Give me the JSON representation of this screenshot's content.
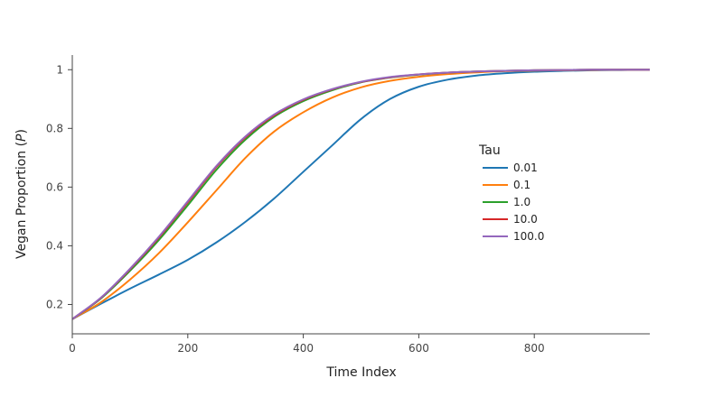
{
  "chart_data": {
    "type": "line",
    "xlabel": "Time Index",
    "ylabel_main": "Vegan Proportion (",
    "ylabel_symbol": "P",
    "ylabel_tail": ")",
    "xlim": [
      0,
      1000
    ],
    "ylim": [
      0.1,
      1.05
    ],
    "x_ticks": [
      0,
      200,
      400,
      600,
      800
    ],
    "x_tick_labels": [
      "0",
      "200",
      "400",
      "600",
      "800"
    ],
    "y_ticks": [
      0.2,
      0.4,
      0.6,
      0.8,
      1.0
    ],
    "y_tick_labels": [
      "0.2",
      "0.4",
      "0.6",
      "0.8",
      "1"
    ],
    "grid": false,
    "legend": {
      "title": "Tau",
      "placement": "right-center"
    },
    "x": [
      0,
      50,
      100,
      150,
      200,
      250,
      300,
      350,
      400,
      450,
      500,
      550,
      600,
      650,
      700,
      750,
      800,
      850,
      900,
      950,
      1000
    ],
    "series": [
      {
        "name": "0.01",
        "color": "#1f77b4",
        "values": [
          0.15,
          0.203,
          0.254,
          0.302,
          0.352,
          0.412,
          0.482,
          0.562,
          0.652,
          0.742,
          0.832,
          0.9,
          0.942,
          0.966,
          0.98,
          0.988,
          0.993,
          0.996,
          0.998,
          0.999,
          1.0
        ]
      },
      {
        "name": "0.1",
        "color": "#ff7f0e",
        "values": [
          0.15,
          0.208,
          0.285,
          0.375,
          0.48,
          0.59,
          0.7,
          0.79,
          0.855,
          0.905,
          0.94,
          0.962,
          0.976,
          0.985,
          0.991,
          0.995,
          0.997,
          0.998,
          0.999,
          1.0,
          1.0
        ]
      },
      {
        "name": "1.0",
        "color": "#2ca02c",
        "values": [
          0.15,
          0.221,
          0.315,
          0.42,
          0.538,
          0.66,
          0.762,
          0.84,
          0.893,
          0.93,
          0.957,
          0.973,
          0.983,
          0.99,
          0.994,
          0.996,
          0.998,
          0.999,
          1.0,
          1.0,
          1.0
        ]
      },
      {
        "name": "10.0",
        "color": "#d62728",
        "values": [
          0.15,
          0.223,
          0.32,
          0.428,
          0.548,
          0.67,
          0.77,
          0.845,
          0.897,
          0.933,
          0.958,
          0.974,
          0.984,
          0.99,
          0.994,
          0.996,
          0.998,
          0.999,
          1.0,
          1.0,
          1.0
        ]
      },
      {
        "name": "100.0",
        "color": "#9467bd",
        "values": [
          0.15,
          0.224,
          0.322,
          0.431,
          0.552,
          0.673,
          0.773,
          0.848,
          0.899,
          0.934,
          0.959,
          0.975,
          0.984,
          0.99,
          0.994,
          0.996,
          0.998,
          0.999,
          1.0,
          1.0,
          1.0
        ]
      }
    ]
  }
}
